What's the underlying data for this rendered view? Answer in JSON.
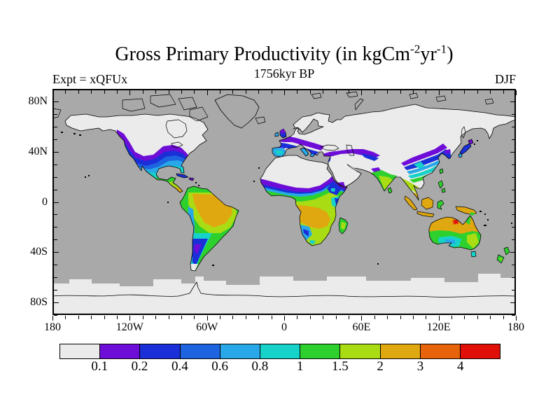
{
  "title": {
    "main": "Gross Primary Productivity (in kgCm",
    "sup1": "-2",
    "mid": "yr",
    "sup2": "-1",
    "end": ")"
  },
  "subtitle": "1756kyr BP",
  "expt_label": "Expt = xQFUx",
  "season_label": "DJF",
  "axes": {
    "x_labels": [
      "180",
      "120W",
      "60W",
      "0",
      "60E",
      "120E",
      "180"
    ],
    "y_labels": [
      "80N",
      "40N",
      "0",
      "40S",
      "80S"
    ]
  },
  "colorbar": {
    "labels": [
      "0.1",
      "0.2",
      "0.4",
      "0.6",
      "0.8",
      "1",
      "1.5",
      "2",
      "3",
      "4"
    ],
    "colors": [
      "#ebebeb",
      "#6e0dd8",
      "#1a2fd8",
      "#1e64e0",
      "#28a8e8",
      "#16d2c8",
      "#2ed02e",
      "#aadc14",
      "#e0a810",
      "#e8640c",
      "#e01008"
    ]
  },
  "colors": {
    "ocean": "#a9a9a9",
    "land": "#ebebeb",
    "coastline": "#000000",
    "frame": "#000000",
    "background": "#ffffff"
  },
  "chart_data": {
    "type": "filled_contour_map",
    "variable": "Gross Primary Productivity",
    "units": "kgCm-2yr-1",
    "experiment": "xQFUx",
    "time": "1756kyr BP",
    "season": "DJF",
    "projection": "equirectangular",
    "lon_range": [
      -180,
      180
    ],
    "lat_range": [
      -90,
      90
    ],
    "contour_levels": [
      0.1,
      0.2,
      0.4,
      0.6,
      0.8,
      1,
      1.5,
      2,
      3,
      4
    ],
    "palette": [
      "#ebebeb",
      "#6e0dd8",
      "#1a2fd8",
      "#1e64e0",
      "#28a8e8",
      "#16d2c8",
      "#2ed02e",
      "#aadc14",
      "#e0a810",
      "#e8640c",
      "#e01008"
    ],
    "x_ticks_major_deg": 60,
    "x_ticks_minor_deg": 10,
    "y_ticks_major_deg": 40,
    "y_ticks_minor_deg": 10,
    "legend_position": "bottom",
    "regions": [
      {
        "region": "Northern high latitudes (Canada, N Europe, Siberia, Tibet)",
        "value": "<0.1 (winter dormant, light gray)"
      },
      {
        "region": "Sahara and Arabia",
        "value": "<0.1"
      },
      {
        "region": "Southern US / S Europe / E China",
        "value": "0.1-1 banded transition (purple-blue-cyan)"
      },
      {
        "region": "Mexico, Sahel, India, S China",
        "value": "1-2 (green / yellow-green)"
      },
      {
        "region": "Amazon basin",
        "value": "2-3 (orange core)"
      },
      {
        "region": "Congo basin and W Africa",
        "value": "2-3 (orange core)"
      },
      {
        "region": "Maritime SE Asia (Sumatra, Borneo, Java, New Guinea)",
        "value": "2-3"
      },
      {
        "region": "Northern Australia",
        "value": "2-3 with tiny spot >4 (red)"
      },
      {
        "region": "Central-south Australia",
        "value": "0.6-1 (cyan patch)"
      },
      {
        "region": "Patagonia and SW Africa coast",
        "value": "0.1-0.6 (blue/purple)"
      },
      {
        "region": "Antarctica and Greenland",
        "value": "ice, no data (light gray)"
      }
    ]
  }
}
